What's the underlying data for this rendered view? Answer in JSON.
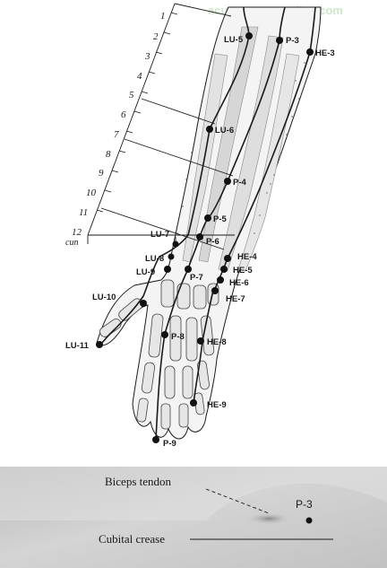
{
  "watermark": "acupuncture-online.com",
  "scale": {
    "ticks": [
      "1",
      "2",
      "3",
      "4",
      "5",
      "6",
      "7",
      "8",
      "9",
      "10",
      "11",
      "12"
    ],
    "unit": "cun"
  },
  "points": {
    "lu5": "LU-5",
    "p3": "P-3",
    "he3": "HE-3",
    "lu6": "LU-6",
    "p4": "P-4",
    "p5": "P-5",
    "p6": "P-6",
    "lu7": "LU-7",
    "he4": "HE-4",
    "lu8": "LU-8",
    "he5": "HE-5",
    "lu9": "LU-9",
    "p7": "P-7",
    "he6": "HE-6",
    "he7": "HE-7",
    "lu10": "LU-10",
    "p8": "P-8",
    "lu11": "LU-11",
    "he8": "HE-8",
    "he9": "HE-9",
    "p9": "P-9"
  },
  "photo": {
    "biceps_tendon": "Biceps tendon",
    "cubital_crease": "Cubital crease",
    "point": "P-3"
  },
  "colors": {
    "ink": "#1a1a1a",
    "muscle": "#d6d6d6",
    "photo_bg": "#cdcdcd"
  }
}
